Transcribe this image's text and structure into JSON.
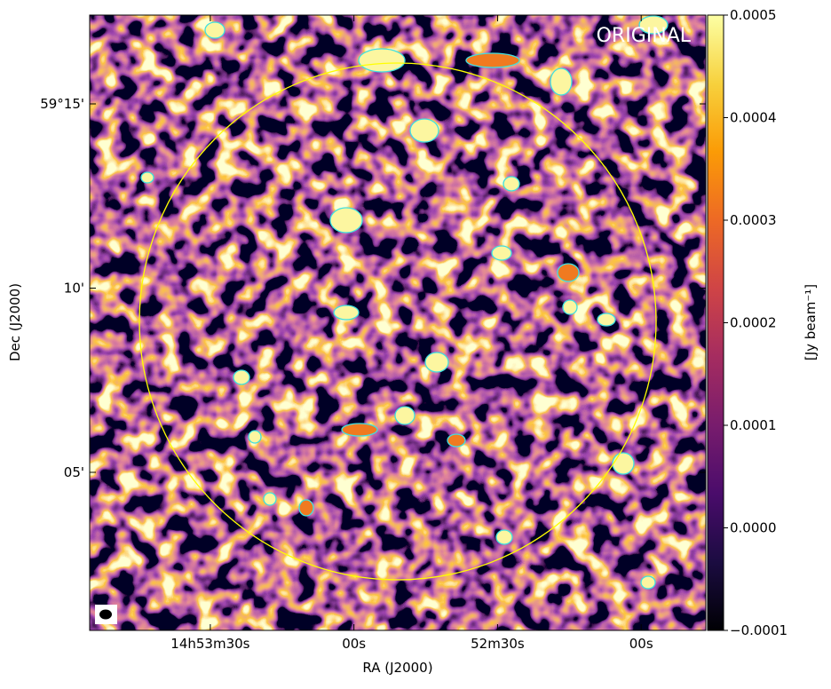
{
  "chart_data": {
    "type": "image",
    "annotation": "ORIGINAL",
    "x_label": "RA (J2000)",
    "y_label": "Dec (J2000)",
    "xlim": [
      3235.2,
      3106.5
    ],
    "xticks": [
      {
        "value": 3210,
        "label": "14h53m30s"
      },
      {
        "value": 3180,
        "label": "00s"
      },
      {
        "value": 3150,
        "label": "52m30s"
      },
      {
        "value": 3120,
        "label": "00s"
      }
    ],
    "ylim": [
      0.71,
      17.41
    ],
    "yticks": [
      {
        "value": 15,
        "label": "59°15'"
      },
      {
        "value": 10,
        "label": "10'"
      },
      {
        "value": 5,
        "label": "05'"
      }
    ],
    "colormap": "inferno",
    "colorbar_label": "[Jy beam⁻¹]",
    "clim": [
      -0.0001,
      0.0005
    ],
    "cticks": [
      {
        "value": -0.0001,
        "label": "−0.0001"
      },
      {
        "value": 0,
        "label": "0.0000"
      },
      0.0001,
      0.0002,
      0.0003,
      0.0004,
      0.0005
    ]
  }
}
